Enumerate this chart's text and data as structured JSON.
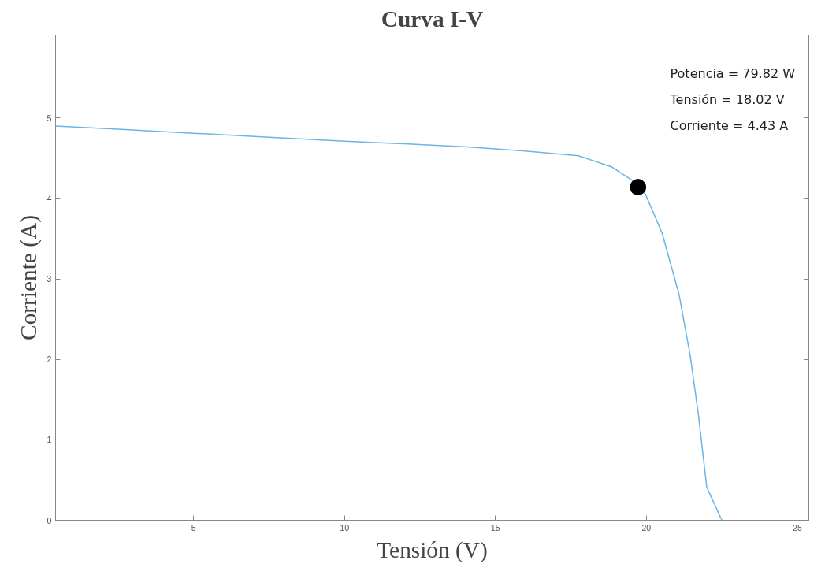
{
  "chart_data": {
    "type": "line",
    "title": "Curva I-V",
    "xlabel": "Tensión (V)",
    "ylabel": "Corriente (A)",
    "xlim": [
      0.43,
      25.38
    ],
    "ylim": [
      0,
      6.03
    ],
    "xticks": [
      5,
      10,
      15,
      20,
      25
    ],
    "yticks": [
      0,
      1,
      2,
      3,
      4,
      5
    ],
    "grid": false,
    "annotations": [
      "Potencia = 79.82 W",
      "Tensión = 18.02 V",
      "Corriente = 4.43 A"
    ],
    "series": [
      {
        "color": "#6cb4e4",
        "marker": "none",
        "line_style": "solid",
        "x": [
          0.43,
          2.5,
          5,
          7.5,
          10,
          12.5,
          14.06,
          15.91,
          17.75,
          18.86,
          19.59,
          19.97,
          20.52,
          21.08,
          21.45,
          21.72,
          22.0,
          22.5
        ],
        "values": [
          4.9,
          4.86,
          4.81,
          4.76,
          4.71,
          4.67,
          4.64,
          4.59,
          4.53,
          4.39,
          4.21,
          4.05,
          3.57,
          2.81,
          2.05,
          1.32,
          0.41,
          0
        ]
      },
      {
        "type": "scatter",
        "color": "#000000",
        "marker": "circle",
        "x": [
          19.72
        ],
        "values": [
          4.14
        ]
      }
    ]
  }
}
